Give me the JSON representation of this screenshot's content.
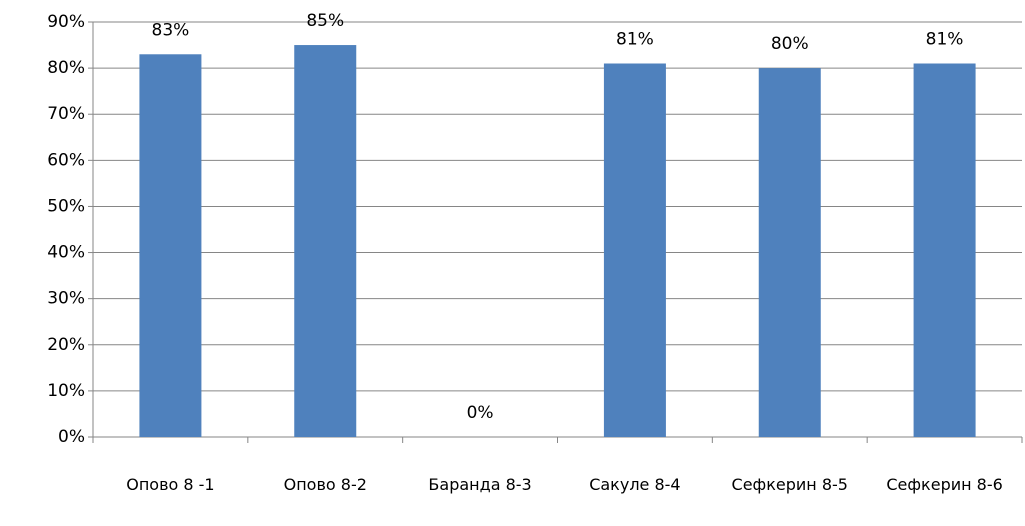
{
  "chart_data": {
    "type": "bar",
    "categories": [
      "Опово 8 -1",
      "Опово 8-2",
      "Баранда 8-3",
      "Сакуле 8-4",
      "Сефкерин 8-5",
      "Сефкерин 8-6"
    ],
    "values": [
      83,
      85,
      0,
      81,
      80,
      81
    ],
    "value_labels": [
      "83%",
      "85%",
      "0%",
      "81%",
      "80%",
      "81%"
    ],
    "color": "#4f81bd",
    "ylim": [
      0,
      90
    ],
    "yticks": [
      {
        "value": 0,
        "label": "0%"
      },
      {
        "value": 10,
        "label": "10%"
      },
      {
        "value": 20,
        "label": "20%"
      },
      {
        "value": 30,
        "label": "30%"
      },
      {
        "value": 40,
        "label": "40%"
      },
      {
        "value": 50,
        "label": "50%"
      },
      {
        "value": 60,
        "label": "60%"
      },
      {
        "value": 70,
        "label": "70%"
      },
      {
        "value": 80,
        "label": "80%"
      },
      {
        "value": 90,
        "label": "90%"
      }
    ],
    "grid": true
  }
}
